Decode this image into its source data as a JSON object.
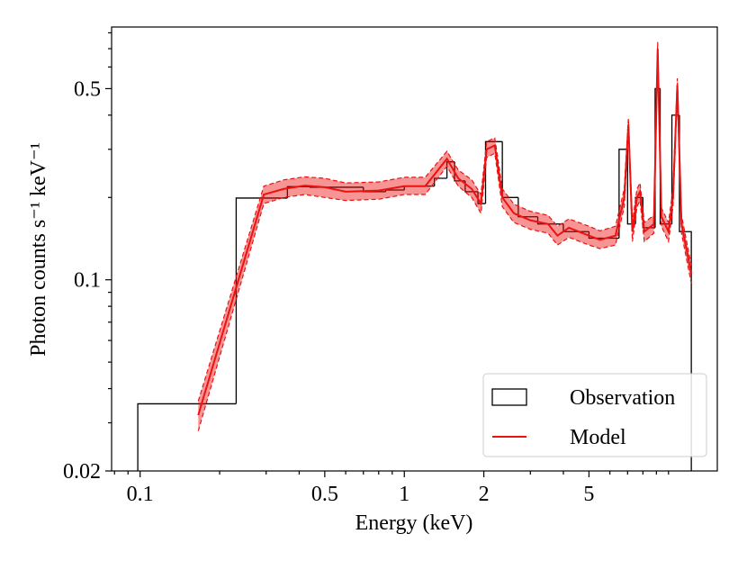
{
  "chart_data": {
    "type": "combo",
    "xlabel": "Energy (keV)",
    "ylabel": "Photon counts s⁻¹ keV⁻¹",
    "xscale": "log",
    "yscale": "log",
    "xlim": [
      0.078,
      15.3
    ],
    "ylim": [
      0.02,
      0.84
    ],
    "xticks": [
      0.1,
      0.5,
      1,
      2,
      5
    ],
    "yticks": [
      0.02,
      0.1,
      0.5
    ],
    "xminorticks": [
      0.08,
      0.09,
      0.2,
      0.3,
      0.4,
      0.6,
      0.7,
      0.8,
      0.9,
      3,
      4,
      6,
      7,
      8,
      9,
      10
    ],
    "yminorticks": [
      0.03,
      0.04,
      0.05,
      0.06,
      0.07,
      0.08,
      0.09,
      0.2,
      0.3,
      0.4,
      0.6,
      0.7,
      0.8
    ],
    "legend": "lower right",
    "series": [
      {
        "name": "Observation",
        "type": "histogram",
        "color": "#000000",
        "bins": [
          0.098,
          0.231,
          0.361,
          0.44,
          0.7,
          0.85,
          1.0,
          1.3,
          1.45,
          1.55,
          1.7,
          1.9,
          2.03,
          2.35,
          2.7,
          3.2,
          4.0,
          5.0,
          6.5,
          7.0,
          7.5,
          8.0,
          8.9,
          9.3,
          10.3,
          11.0,
          12.2
        ],
        "values": [
          0.0352,
          0.199,
          0.219,
          0.218,
          0.21,
          0.213,
          0.22,
          0.235,
          0.27,
          0.23,
          0.21,
          0.19,
          0.32,
          0.2,
          0.17,
          0.16,
          0.15,
          0.142,
          0.3,
          0.16,
          0.2,
          0.155,
          0.5,
          0.16,
          0.4,
          0.15
        ]
      },
      {
        "name": "Model",
        "type": "line",
        "color": "#ee1111",
        "x": [
          0.166,
          0.294,
          0.35,
          0.42,
          0.5,
          0.6,
          0.8,
          1.0,
          1.2,
          1.45,
          1.6,
          1.8,
          1.95,
          2.05,
          2.2,
          2.35,
          2.6,
          3.0,
          3.5,
          3.8,
          4.2,
          5.0,
          5.5,
          6.3,
          6.8,
          7.05,
          7.3,
          7.6,
          7.8,
          8.1,
          8.8,
          9.1,
          9.4,
          10.0,
          10.4,
          10.8,
          11.2,
          12.2
        ],
        "values": [
          0.032,
          0.205,
          0.215,
          0.221,
          0.218,
          0.21,
          0.212,
          0.22,
          0.22,
          0.277,
          0.235,
          0.215,
          0.19,
          0.3,
          0.31,
          0.2,
          0.175,
          0.165,
          0.16,
          0.145,
          0.155,
          0.145,
          0.14,
          0.145,
          0.2,
          0.37,
          0.15,
          0.2,
          0.21,
          0.15,
          0.16,
          0.7,
          0.17,
          0.15,
          0.2,
          0.515,
          0.16,
          0.105
        ],
        "lower": [
          0.028,
          0.19,
          0.2,
          0.205,
          0.2,
          0.195,
          0.197,
          0.205,
          0.205,
          0.26,
          0.22,
          0.2,
          0.175,
          0.28,
          0.29,
          0.185,
          0.162,
          0.153,
          0.148,
          0.134,
          0.143,
          0.134,
          0.13,
          0.134,
          0.185,
          0.35,
          0.138,
          0.185,
          0.195,
          0.138,
          0.148,
          0.66,
          0.157,
          0.138,
          0.185,
          0.485,
          0.148,
          0.097
        ],
        "upper": [
          0.036,
          0.22,
          0.232,
          0.238,
          0.235,
          0.226,
          0.228,
          0.237,
          0.237,
          0.295,
          0.252,
          0.232,
          0.205,
          0.32,
          0.33,
          0.215,
          0.189,
          0.178,
          0.172,
          0.157,
          0.167,
          0.157,
          0.151,
          0.157,
          0.215,
          0.39,
          0.162,
          0.215,
          0.226,
          0.162,
          0.172,
          0.74,
          0.183,
          0.162,
          0.215,
          0.545,
          0.172,
          0.113
        ]
      }
    ]
  }
}
